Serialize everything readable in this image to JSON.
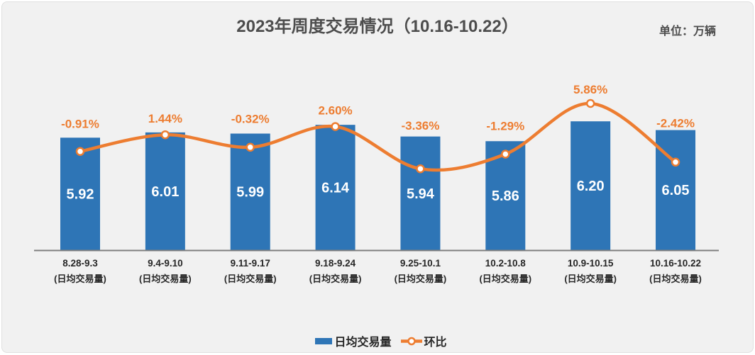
{
  "title": "2023年周度交易情况（10.16-10.22）",
  "unit_label": "单位：万辆",
  "legend": {
    "bar_label": "日均交易量",
    "line_label": "环比"
  },
  "colors": {
    "bar": "#2E75B6",
    "line": "#ED7D31",
    "marker_fill": "#FFFFFF",
    "axis": "#7F7F7F",
    "title_text": "#4D4D4D",
    "tick_text": "#262626",
    "bar_label": "#FFFFFF",
    "pct_label": "#ED7D31",
    "card_bg": "#F1F1F1"
  },
  "chart_data": {
    "type": "bar+line",
    "title": "2023年周度交易情况（10.16-10.22）",
    "unit": "万辆",
    "categories": [
      "8.28-9.3",
      "9.4-9.10",
      "9.11-9.17",
      "9.18-9.24",
      "9.25-10.1",
      "10.2-10.8",
      "10.9-10.15",
      "10.16-10.22"
    ],
    "category_sublabel": "(日均交易量)",
    "series": [
      {
        "name": "日均交易量",
        "type": "bar",
        "values": [
          5.92,
          6.01,
          5.99,
          6.14,
          5.94,
          5.86,
          6.2,
          6.05
        ],
        "labels": [
          "5.92",
          "6.01",
          "5.99",
          "6.14",
          "5.94",
          "5.86",
          "6.20",
          "6.05"
        ]
      },
      {
        "name": "环比",
        "type": "line",
        "values": [
          -0.91,
          1.44,
          -0.32,
          2.6,
          -3.36,
          -1.29,
          5.86,
          -2.42
        ],
        "labels": [
          "-0.91%",
          "1.44%",
          "-0.32%",
          "2.60%",
          "-3.36%",
          "-1.29%",
          "5.86%",
          "-2.42%"
        ]
      }
    ],
    "value_axis_range_hint": [
      4.0,
      6.4
    ],
    "pct_axis_range_hint": [
      -14.8,
      14.8
    ],
    "grid": false,
    "legend_position": "bottom"
  }
}
